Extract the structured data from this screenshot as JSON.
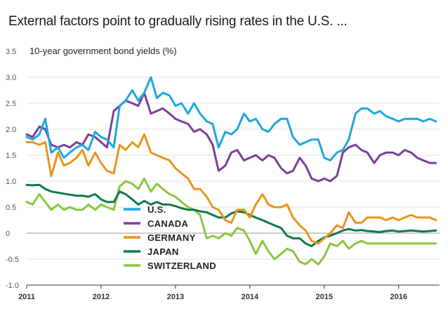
{
  "chart_data": {
    "type": "line",
    "title": "External factors point to gradually rising rates in the U.S. ...",
    "ylabel": "10-year government bond yields (%)",
    "xlabel": "",
    "ylim": [
      -1.0,
      3.5
    ],
    "yticks": [
      "3.5",
      "3.0",
      "2.5",
      "2.0",
      "1.5",
      "1.0",
      "0.5",
      "0",
      "-0.5",
      "-1.0"
    ],
    "ytick_values": [
      3.5,
      3.0,
      2.5,
      2.0,
      1.5,
      1.0,
      0.5,
      0,
      -0.5,
      -1.0
    ],
    "xticks": [
      "2011",
      "2012",
      "2013",
      "2014",
      "2015",
      "2016"
    ],
    "xtick_values": [
      2011,
      2012,
      2013,
      2014,
      2015,
      2016
    ],
    "xlim": [
      2011,
      2016.55
    ],
    "grid": "horizontal",
    "legend_position": "lower-left",
    "series": [
      {
        "name": "U.S.",
        "color": "#1ea7e0",
        "x": [
          2011.0,
          2011.08,
          2011.17,
          2011.25,
          2011.33,
          2011.42,
          2011.5,
          2011.58,
          2011.67,
          2011.75,
          2011.83,
          2011.92,
          2012.0,
          2012.08,
          2012.17,
          2012.25,
          2012.33,
          2012.42,
          2012.5,
          2012.58,
          2012.67,
          2012.75,
          2012.83,
          2012.92,
          2013.0,
          2013.08,
          2013.17,
          2013.25,
          2013.33,
          2013.42,
          2013.5,
          2013.58,
          2013.67,
          2013.75,
          2013.83,
          2013.92,
          2014.0,
          2014.08,
          2014.17,
          2014.25,
          2014.33,
          2014.42,
          2014.5,
          2014.58,
          2014.67,
          2014.75,
          2014.83,
          2014.92,
          2015.0,
          2015.08,
          2015.17,
          2015.25,
          2015.33,
          2015.42,
          2015.5,
          2015.58,
          2015.67,
          2015.75,
          2015.83,
          2015.92,
          2016.0,
          2016.08,
          2016.17,
          2016.25,
          2016.33,
          2016.42,
          2016.5
        ],
        "values": [
          1.85,
          1.8,
          1.9,
          2.2,
          1.55,
          1.65,
          1.45,
          1.55,
          1.65,
          1.7,
          1.6,
          1.95,
          1.85,
          1.8,
          1.65,
          2.45,
          2.55,
          2.75,
          2.55,
          2.7,
          3.0,
          2.6,
          2.7,
          2.65,
          2.45,
          2.5,
          2.3,
          2.5,
          2.3,
          2.15,
          2.1,
          1.65,
          1.95,
          1.9,
          2.0,
          2.3,
          2.15,
          2.2,
          2.0,
          1.95,
          2.1,
          2.2,
          2.2,
          1.85,
          1.7,
          1.75,
          1.8,
          1.8,
          1.45,
          1.4,
          1.55,
          1.6,
          1.8,
          2.3,
          2.4,
          2.4,
          2.3,
          2.35,
          2.25,
          2.2,
          2.15,
          2.2,
          2.2,
          2.2,
          2.15,
          2.2,
          2.15
        ]
      },
      {
        "name": "CANADA",
        "color": "#7b3f98",
        "x": [
          2011.0,
          2011.08,
          2011.17,
          2011.25,
          2011.33,
          2011.42,
          2011.5,
          2011.58,
          2011.67,
          2011.75,
          2011.83,
          2011.92,
          2012.0,
          2012.08,
          2012.17,
          2012.25,
          2012.33,
          2012.42,
          2012.5,
          2012.58,
          2012.67,
          2012.75,
          2012.83,
          2012.92,
          2013.0,
          2013.08,
          2013.17,
          2013.25,
          2013.33,
          2013.42,
          2013.5,
          2013.58,
          2013.67,
          2013.75,
          2013.83,
          2013.92,
          2014.0,
          2014.08,
          2014.17,
          2014.25,
          2014.33,
          2014.42,
          2014.5,
          2014.58,
          2014.67,
          2014.75,
          2014.83,
          2014.92,
          2015.0,
          2015.08,
          2015.17,
          2015.25,
          2015.33,
          2015.42,
          2015.5,
          2015.58,
          2015.67,
          2015.75,
          2015.83,
          2015.92,
          2016.0,
          2016.08,
          2016.17,
          2016.25,
          2016.33,
          2016.42,
          2016.5
        ],
        "values": [
          1.9,
          1.85,
          2.05,
          2.0,
          1.7,
          1.65,
          1.7,
          1.65,
          1.75,
          1.7,
          1.9,
          1.85,
          1.75,
          1.65,
          2.35,
          2.45,
          2.55,
          2.5,
          2.45,
          2.7,
          2.3,
          2.35,
          2.4,
          2.3,
          2.2,
          2.15,
          2.1,
          1.95,
          2.0,
          1.9,
          1.7,
          1.2,
          1.3,
          1.55,
          1.6,
          1.4,
          1.45,
          1.5,
          1.4,
          1.5,
          1.45,
          1.25,
          1.15,
          1.2,
          1.45,
          1.3,
          1.05,
          1.0,
          1.05,
          1.0,
          1.1,
          1.55,
          1.65,
          1.7,
          1.6,
          1.55,
          1.35,
          1.5,
          1.55,
          1.55,
          1.5,
          1.6,
          1.55,
          1.45,
          1.4,
          1.35,
          1.35
        ]
      },
      {
        "name": "GERMANY",
        "color": "#e8951c",
        "x": [
          2011.0,
          2011.08,
          2011.17,
          2011.25,
          2011.33,
          2011.42,
          2011.5,
          2011.58,
          2011.67,
          2011.75,
          2011.83,
          2011.92,
          2012.0,
          2012.08,
          2012.17,
          2012.25,
          2012.33,
          2012.42,
          2012.5,
          2012.58,
          2012.67,
          2012.75,
          2012.83,
          2012.92,
          2013.0,
          2013.08,
          2013.17,
          2013.25,
          2013.33,
          2013.42,
          2013.5,
          2013.58,
          2013.67,
          2013.75,
          2013.83,
          2013.92,
          2014.0,
          2014.08,
          2014.17,
          2014.25,
          2014.33,
          2014.42,
          2014.5,
          2014.58,
          2014.67,
          2014.75,
          2014.83,
          2014.92,
          2015.0,
          2015.08,
          2015.17,
          2015.25,
          2015.33,
          2015.42,
          2015.5,
          2015.58,
          2015.67,
          2015.75,
          2015.83,
          2015.92,
          2016.0,
          2016.08,
          2016.17,
          2016.25,
          2016.33,
          2016.42,
          2016.5
        ],
        "values": [
          1.75,
          1.75,
          1.7,
          1.75,
          1.1,
          1.55,
          1.3,
          1.35,
          1.45,
          1.6,
          1.3,
          1.55,
          1.35,
          1.2,
          1.15,
          1.7,
          1.6,
          1.75,
          1.65,
          1.9,
          1.55,
          1.5,
          1.45,
          1.4,
          1.25,
          1.15,
          1.05,
          0.85,
          0.85,
          0.7,
          0.5,
          0.45,
          0.25,
          0.2,
          0.45,
          0.45,
          0.3,
          0.55,
          0.75,
          0.55,
          0.5,
          0.5,
          0.55,
          0.3,
          0.15,
          0.05,
          -0.15,
          -0.2,
          -0.1,
          0.0,
          0.15,
          0.1,
          0.4,
          0.2,
          0.2,
          0.3,
          0.3,
          0.3,
          0.25,
          0.3,
          0.25,
          0.3,
          0.35,
          0.3,
          0.3,
          0.3,
          0.25
        ]
      },
      {
        "name": "JAPAN",
        "color": "#0f7a4a",
        "x": [
          2011.0,
          2011.08,
          2011.17,
          2011.25,
          2011.33,
          2011.42,
          2011.5,
          2011.58,
          2011.67,
          2011.75,
          2011.83,
          2011.92,
          2012.0,
          2012.08,
          2012.17,
          2012.25,
          2012.33,
          2012.42,
          2012.5,
          2012.58,
          2012.67,
          2012.75,
          2012.83,
          2012.92,
          2013.0,
          2013.08,
          2013.17,
          2013.25,
          2013.33,
          2013.42,
          2013.5,
          2013.58,
          2013.67,
          2013.75,
          2013.83,
          2013.92,
          2014.0,
          2014.08,
          2014.17,
          2014.25,
          2014.33,
          2014.42,
          2014.5,
          2014.58,
          2014.67,
          2014.75,
          2014.83,
          2014.92,
          2015.0,
          2015.08,
          2015.17,
          2015.25,
          2015.33,
          2015.42,
          2015.5,
          2015.58,
          2015.67,
          2015.75,
          2015.83,
          2015.92,
          2016.0,
          2016.08,
          2016.17,
          2016.25,
          2016.33,
          2016.42,
          2016.5
        ],
        "values": [
          0.93,
          0.92,
          0.93,
          0.85,
          0.8,
          0.78,
          0.76,
          0.74,
          0.72,
          0.72,
          0.7,
          0.75,
          0.65,
          0.6,
          0.6,
          0.8,
          0.75,
          0.65,
          0.55,
          0.62,
          0.55,
          0.6,
          0.55,
          0.55,
          0.52,
          0.48,
          0.45,
          0.45,
          0.42,
          0.4,
          0.35,
          0.3,
          0.3,
          0.38,
          0.42,
          0.4,
          0.35,
          0.3,
          0.25,
          0.2,
          0.15,
          0.1,
          -0.05,
          -0.1,
          -0.1,
          -0.2,
          -0.25,
          -0.15,
          -0.08,
          -0.05,
          0.0,
          0.05,
          0.08,
          0.05,
          0.06,
          0.04,
          0.03,
          0.02,
          0.04,
          0.05,
          0.03,
          0.04,
          0.05,
          0.04,
          0.03,
          0.04,
          0.05
        ]
      },
      {
        "name": "SWITZERLAND",
        "color": "#8cc63f",
        "x": [
          2011.0,
          2011.08,
          2011.17,
          2011.25,
          2011.33,
          2011.42,
          2011.5,
          2011.58,
          2011.67,
          2011.75,
          2011.83,
          2011.92,
          2012.0,
          2012.08,
          2012.17,
          2012.25,
          2012.33,
          2012.42,
          2012.5,
          2012.58,
          2012.67,
          2012.75,
          2012.83,
          2012.92,
          2013.0,
          2013.08,
          2013.17,
          2013.25,
          2013.33,
          2013.42,
          2013.5,
          2013.58,
          2013.67,
          2013.75,
          2013.83,
          2013.92,
          2014.0,
          2014.08,
          2014.17,
          2014.25,
          2014.33,
          2014.42,
          2014.5,
          2014.58,
          2014.67,
          2014.75,
          2014.83,
          2014.92,
          2015.0,
          2015.08,
          2015.17,
          2015.25,
          2015.33,
          2015.42,
          2015.5,
          2015.58,
          2015.67,
          2015.75,
          2015.83,
          2015.92,
          2016.0,
          2016.08,
          2016.17,
          2016.25,
          2016.33,
          2016.42,
          2016.5
        ],
        "values": [
          0.6,
          0.55,
          0.75,
          0.6,
          0.45,
          0.55,
          0.45,
          0.5,
          0.45,
          0.45,
          0.55,
          0.45,
          0.55,
          0.5,
          0.45,
          0.9,
          1.0,
          0.95,
          0.85,
          1.05,
          0.8,
          0.95,
          0.85,
          0.75,
          0.7,
          0.6,
          0.5,
          0.45,
          0.35,
          -0.1,
          -0.05,
          -0.1,
          0.0,
          -0.05,
          0.1,
          0.05,
          -0.15,
          -0.4,
          -0.15,
          -0.35,
          -0.5,
          -0.4,
          -0.3,
          -0.35,
          -0.55,
          -0.6,
          -0.5,
          -0.6,
          -0.45,
          -0.2,
          -0.25,
          -0.15,
          -0.3,
          -0.2,
          -0.15,
          -0.2,
          -0.2,
          -0.2,
          -0.2,
          -0.2,
          -0.2,
          -0.2,
          -0.2,
          -0.2,
          -0.2,
          -0.2,
          -0.2
        ]
      }
    ]
  }
}
